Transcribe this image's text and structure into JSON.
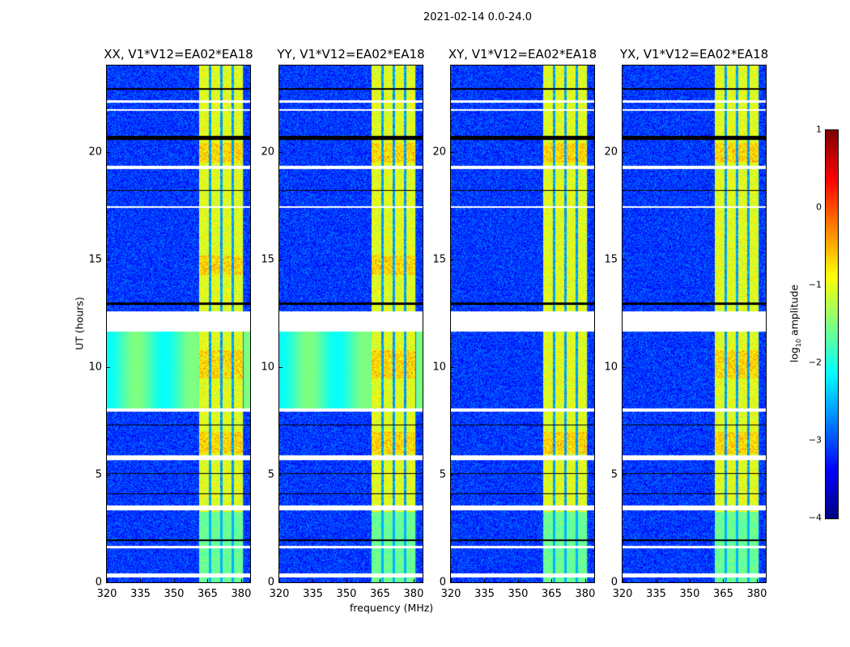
{
  "suptitle": "2021-02-14 0.0-24.0",
  "chart_data": [
    {
      "type": "heatmap",
      "title": "XX, V1*V12=EA02*EA18",
      "xlabel": "frequency (MHz)",
      "ylabel": "UT (hours)",
      "xlim": [
        320,
        384
      ],
      "ylim": [
        0,
        24
      ],
      "xticks": [
        "320",
        "335",
        "350",
        "365",
        "380"
      ],
      "xtick_values": [
        320,
        335,
        350,
        365,
        380
      ],
      "yticks": [
        "0",
        "5",
        "10",
        "15",
        "20"
      ],
      "ytick_values": [
        0,
        5,
        10,
        15,
        20
      ],
      "rfi_band_mhz": [
        361,
        381
      ],
      "low_freq_level_hours_8_to_11_6": -1.8
    },
    {
      "type": "heatmap",
      "title": "YY, V1*V12=EA02*EA18",
      "xlabel": "frequency (MHz)",
      "ylabel": "UT (hours)",
      "xlim": [
        320,
        384
      ],
      "ylim": [
        0,
        24
      ],
      "xticks": [
        "320",
        "335",
        "350",
        "365",
        "380"
      ],
      "xtick_values": [
        320,
        335,
        350,
        365,
        380
      ],
      "yticks": [
        "0",
        "5",
        "10",
        "15",
        "20"
      ],
      "ytick_values": [
        0,
        5,
        10,
        15,
        20
      ],
      "rfi_band_mhz": [
        361,
        381
      ],
      "low_freq_level_hours_8_to_11_6": -1.8
    },
    {
      "type": "heatmap",
      "title": "XY, V1*V12=EA02*EA18",
      "xlabel": "frequency (MHz)",
      "ylabel": "UT (hours)",
      "xlim": [
        320,
        384
      ],
      "ylim": [
        0,
        24
      ],
      "xticks": [
        "320",
        "335",
        "350",
        "365",
        "380"
      ],
      "xtick_values": [
        320,
        335,
        350,
        365,
        380
      ],
      "yticks": [
        "0",
        "5",
        "10",
        "15",
        "20"
      ],
      "ytick_values": [
        0,
        5,
        10,
        15,
        20
      ],
      "rfi_band_mhz": [
        361,
        381
      ],
      "low_freq_level_hours_8_to_11_6": null
    },
    {
      "type": "heatmap",
      "title": "YX, V1*V12=EA02*EA18",
      "xlabel": "frequency (MHz)",
      "ylabel": "UT (hours)",
      "xlim": [
        320,
        384
      ],
      "ylim": [
        0,
        24
      ],
      "xticks": [
        "320",
        "335",
        "350",
        "365",
        "380"
      ],
      "xtick_values": [
        320,
        335,
        350,
        365,
        380
      ],
      "yticks": [
        "0",
        "5",
        "10",
        "15",
        "20"
      ],
      "ytick_values": [
        0,
        5,
        10,
        15,
        20
      ],
      "rfi_band_mhz": [
        361,
        381
      ],
      "low_freq_level_hours_8_to_11_6": null
    }
  ],
  "flagged_hours": [
    [
      0.26,
      0.45
    ],
    [
      1.6,
      1.72
    ],
    [
      3.35,
      3.6
    ],
    [
      5.7,
      5.9
    ],
    [
      7.95,
      8.1
    ],
    [
      11.66,
      12.6
    ],
    [
      17.4,
      17.5
    ],
    [
      19.2,
      19.38
    ],
    [
      21.9,
      22.0
    ],
    [
      22.3,
      22.4
    ]
  ],
  "black_hours": [
    [
      1.95,
      2.0
    ],
    [
      4.1,
      4.15
    ],
    [
      5.05,
      5.1
    ],
    [
      7.3,
      7.35
    ],
    [
      12.9,
      13.0
    ],
    [
      18.2,
      18.25
    ],
    [
      20.55,
      20.75
    ],
    [
      22.9,
      22.95
    ]
  ],
  "colorbar": {
    "label": "log10 amplitude",
    "label_main": "log",
    "label_sub": "10",
    "label_rest": " amplitude",
    "range": [
      -4,
      1
    ],
    "ticks": [
      "1",
      "0",
      "−1",
      "−2",
      "−3",
      "−4"
    ],
    "tick_values": [
      1,
      0,
      -1,
      -2,
      -3,
      -4
    ],
    "colormap": "jet"
  }
}
